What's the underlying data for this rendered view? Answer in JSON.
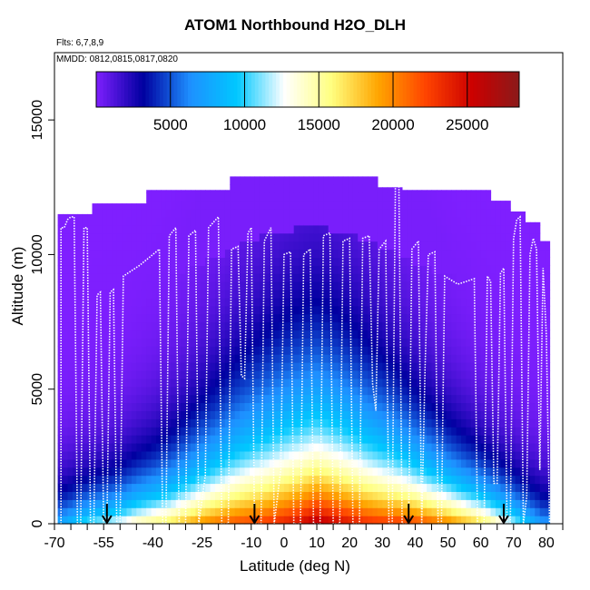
{
  "chart_data": {
    "type": "heatmap",
    "title": "ATOM1 Northbound H2O_DLH",
    "subtitle_flights": "Flts: 6,7,8,9",
    "subtitle_dates": "MMDD: 0812,0815,0817,0820",
    "xlabel": "Latitude (deg N)",
    "ylabel": "Altitude (m)",
    "xlim": [
      -70,
      85
    ],
    "ylim": [
      0,
      17500
    ],
    "x_tick_labels": [
      "-70",
      "-55",
      "-40",
      "-25",
      "-10",
      "0",
      "10",
      "20",
      "30",
      "40",
      "50",
      "60",
      "70",
      "80"
    ],
    "y_tick_labels": [
      "0",
      "5000",
      "10000",
      "15000"
    ],
    "colorbar": {
      "range": [
        0,
        28500
      ],
      "tick_labels": [
        "5000",
        "10000",
        "15000",
        "20000",
        "25000"
      ],
      "colors": [
        "#7f1fff",
        "#0000a0",
        "#1e90ff",
        "#00c8ff",
        "#ffffff",
        "#ffff80",
        "#ffa500",
        "#ff4500",
        "#cc0000",
        "#8b1a1a"
      ]
    },
    "columns": [
      {
        "lat": -68,
        "top": 11500
      },
      {
        "lat": -65,
        "top": 11500
      },
      {
        "lat": -60,
        "top": 11500
      },
      {
        "lat": -57,
        "top": 11900
      },
      {
        "lat": -50,
        "top": 11900
      },
      {
        "lat": -45,
        "top": 11900
      },
      {
        "lat": -38,
        "top": 12400
      },
      {
        "lat": -30,
        "top": 12400
      },
      {
        "lat": -20,
        "top": 12400
      },
      {
        "lat": -13,
        "top": 12900
      },
      {
        "lat": -5,
        "top": 12900
      },
      {
        "lat": 5,
        "top": 12900
      },
      {
        "lat": 15,
        "top": 12900
      },
      {
        "lat": 25,
        "top": 12900
      },
      {
        "lat": 32,
        "top": 12500
      },
      {
        "lat": 40,
        "top": 12400
      },
      {
        "lat": 50,
        "top": 12400
      },
      {
        "lat": 60,
        "top": 12400
      },
      {
        "lat": 67,
        "top": 12000
      },
      {
        "lat": 72,
        "top": 11600
      },
      {
        "lat": 76,
        "top": 11200
      },
      {
        "lat": 79,
        "top": 10500
      }
    ],
    "surface_values": [
      [
        -68,
        8000
      ],
      [
        -60,
        11000
      ],
      [
        -55,
        12000
      ],
      [
        -50,
        13000
      ],
      [
        -45,
        15000
      ],
      [
        -40,
        16000
      ],
      [
        -35,
        17000
      ],
      [
        -30,
        18500
      ],
      [
        -25,
        20000
      ],
      [
        -20,
        21000
      ],
      [
        -15,
        22000
      ],
      [
        -10,
        22500
      ],
      [
        -5,
        23000
      ],
      [
        0,
        24000
      ],
      [
        5,
        25000
      ],
      [
        10,
        26500
      ],
      [
        15,
        25500
      ],
      [
        20,
        24500
      ],
      [
        25,
        23500
      ],
      [
        30,
        23000
      ],
      [
        35,
        23000
      ],
      [
        40,
        22500
      ],
      [
        45,
        21500
      ],
      [
        50,
        20500
      ],
      [
        55,
        19000
      ],
      [
        60,
        17500
      ],
      [
        65,
        15000
      ],
      [
        70,
        12000
      ],
      [
        75,
        9000
      ],
      [
        79,
        7000
      ]
    ],
    "arrows_lat": [
      -54,
      -9,
      38,
      67
    ],
    "flight_track": [
      [
        -68,
        0
      ],
      [
        -68,
        11000
      ],
      [
        -67,
        11000
      ],
      [
        -66,
        11300
      ],
      [
        -65,
        11400
      ],
      [
        -64,
        11400
      ],
      [
        -63,
        0
      ],
      [
        -62,
        0
      ],
      [
        -61,
        11000
      ],
      [
        -60,
        11000
      ],
      [
        -59,
        0
      ],
      [
        -58,
        0
      ],
      [
        -57,
        8500
      ],
      [
        -56,
        8600
      ],
      [
        -55,
        0
      ],
      [
        -54,
        0
      ],
      [
        -53,
        8600
      ],
      [
        -52,
        8700
      ],
      [
        -51,
        0
      ],
      [
        -50,
        0
      ],
      [
        -49,
        9200
      ],
      [
        -44,
        9600
      ],
      [
        -40,
        10000
      ],
      [
        -38,
        10200
      ],
      [
        -37,
        0
      ],
      [
        -36,
        0
      ],
      [
        -35,
        10700
      ],
      [
        -33,
        11000
      ],
      [
        -32,
        0
      ],
      [
        -30,
        0
      ],
      [
        -29,
        10700
      ],
      [
        -27,
        10900
      ],
      [
        -26,
        0
      ],
      [
        -24,
        1800
      ],
      [
        -23,
        11000
      ],
      [
        -20,
        11400
      ],
      [
        -19,
        0
      ],
      [
        -17,
        0
      ],
      [
        -16,
        10200
      ],
      [
        -14,
        10300
      ],
      [
        -13,
        5500
      ],
      [
        -12,
        5400
      ],
      [
        -11,
        10800
      ],
      [
        -10,
        11000
      ],
      [
        -9,
        0
      ],
      [
        -7,
        0
      ],
      [
        -6,
        10500
      ],
      [
        -4,
        11000
      ],
      [
        -3,
        0
      ],
      [
        -1,
        2000
      ],
      [
        0,
        10000
      ],
      [
        2,
        10100
      ],
      [
        3,
        0
      ],
      [
        5,
        0
      ],
      [
        6,
        10000
      ],
      [
        8,
        10200
      ],
      [
        9,
        0
      ],
      [
        11,
        0
      ],
      [
        12,
        10700
      ],
      [
        14,
        10800
      ],
      [
        15,
        0
      ],
      [
        17,
        0
      ],
      [
        18,
        10500
      ],
      [
        20,
        10600
      ],
      [
        21,
        0
      ],
      [
        23,
        0
      ],
      [
        24,
        10600
      ],
      [
        26,
        10700
      ],
      [
        27,
        5200
      ],
      [
        28,
        4200
      ],
      [
        29,
        10200
      ],
      [
        31,
        10500
      ],
      [
        32,
        0
      ],
      [
        33,
        0
      ],
      [
        34,
        12900
      ],
      [
        35,
        12800
      ],
      [
        36,
        0
      ],
      [
        38,
        0
      ],
      [
        39,
        10200
      ],
      [
        41,
        10500
      ],
      [
        42,
        0
      ],
      [
        43,
        5800
      ],
      [
        44,
        10000
      ],
      [
        46,
        10100
      ],
      [
        47,
        0
      ],
      [
        48,
        0
      ],
      [
        49,
        9200
      ],
      [
        53,
        8900
      ],
      [
        58,
        9100
      ],
      [
        59,
        0
      ],
      [
        61,
        0
      ],
      [
        62,
        9200
      ],
      [
        63,
        9000
      ],
      [
        64,
        1500
      ],
      [
        65,
        1500
      ],
      [
        66,
        9300
      ],
      [
        67,
        9500
      ],
      [
        68,
        0
      ],
      [
        69,
        0
      ],
      [
        70,
        10600
      ],
      [
        71,
        11300
      ],
      [
        72,
        11400
      ],
      [
        73,
        0
      ],
      [
        74,
        1000
      ],
      [
        75,
        10000
      ],
      [
        76,
        10600
      ],
      [
        77,
        10200
      ],
      [
        78,
        2000
      ],
      [
        79,
        9500
      ],
      [
        80,
        7000
      ],
      [
        81,
        0
      ]
    ]
  }
}
